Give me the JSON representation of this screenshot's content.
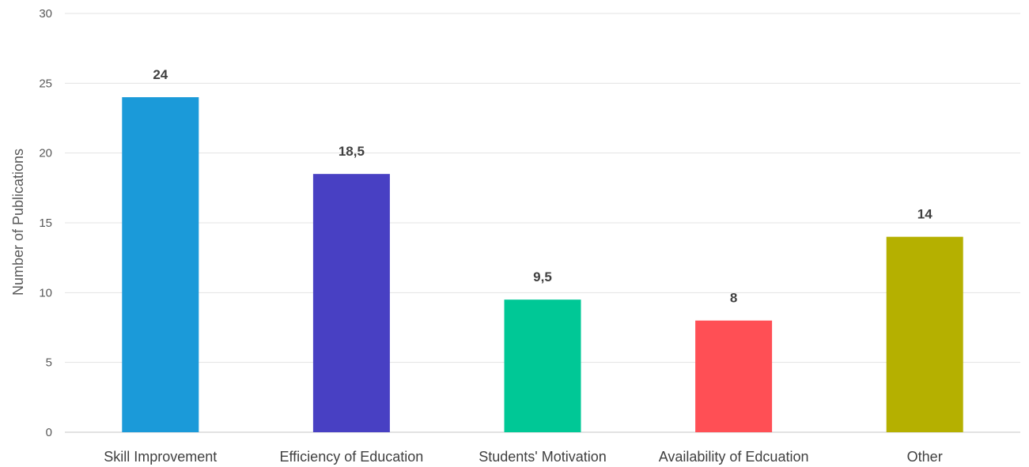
{
  "chart_data": {
    "type": "bar",
    "title": "",
    "xlabel": "",
    "ylabel": "Number of Publications",
    "categories": [
      "Skill Improvement",
      "Efficiency of Education",
      "Students' Motivation",
      "Availability of Edcuation",
      "Other"
    ],
    "values": [
      24,
      18.5,
      9.5,
      8,
      14
    ],
    "value_labels": [
      "24",
      "18,5",
      "9,5",
      "8",
      "14"
    ],
    "colors": [
      "#1b9ad9",
      "#4840c3",
      "#00c896",
      "#ff4f55",
      "#b5b000"
    ],
    "ylim": [
      0,
      30
    ],
    "yticks": [
      0,
      5,
      10,
      15,
      20,
      25,
      30
    ],
    "ytick_labels": [
      "0",
      "5",
      "10",
      "15",
      "20",
      "25",
      "30"
    ],
    "grid": true,
    "legend": "none"
  }
}
